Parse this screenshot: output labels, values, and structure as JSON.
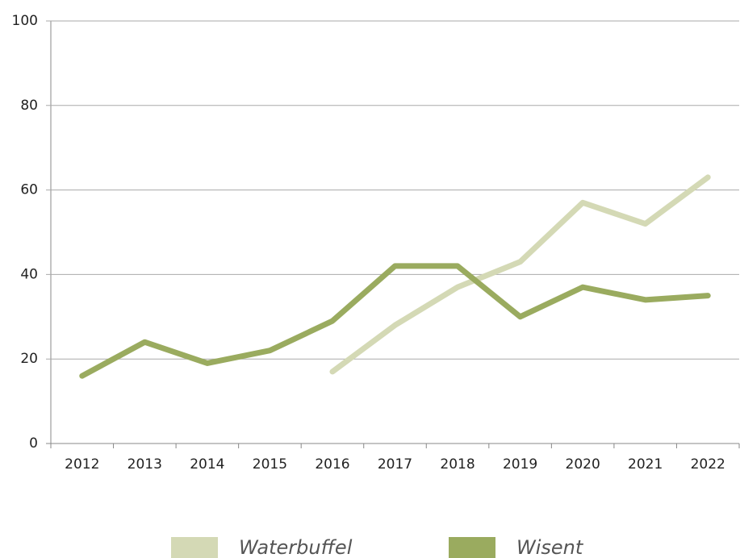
{
  "chart_data": {
    "type": "line",
    "categories": [
      "2012",
      "2013",
      "2014",
      "2015",
      "2016",
      "2017",
      "2018",
      "2019",
      "2020",
      "2021",
      "2022"
    ],
    "series": [
      {
        "name": "Waterbuffel",
        "color": "#d4d9b5",
        "values": [
          null,
          null,
          null,
          null,
          17,
          28,
          37,
          43,
          57,
          52,
          63
        ]
      },
      {
        "name": "Wisent",
        "color": "#9aab5f",
        "values": [
          16,
          24,
          19,
          22,
          29,
          42,
          42,
          30,
          37,
          34,
          35
        ]
      }
    ],
    "ylim": [
      0,
      100
    ],
    "yticks": [
      0,
      20,
      40,
      60,
      80,
      100
    ],
    "grid": true,
    "legend": "bottom"
  }
}
